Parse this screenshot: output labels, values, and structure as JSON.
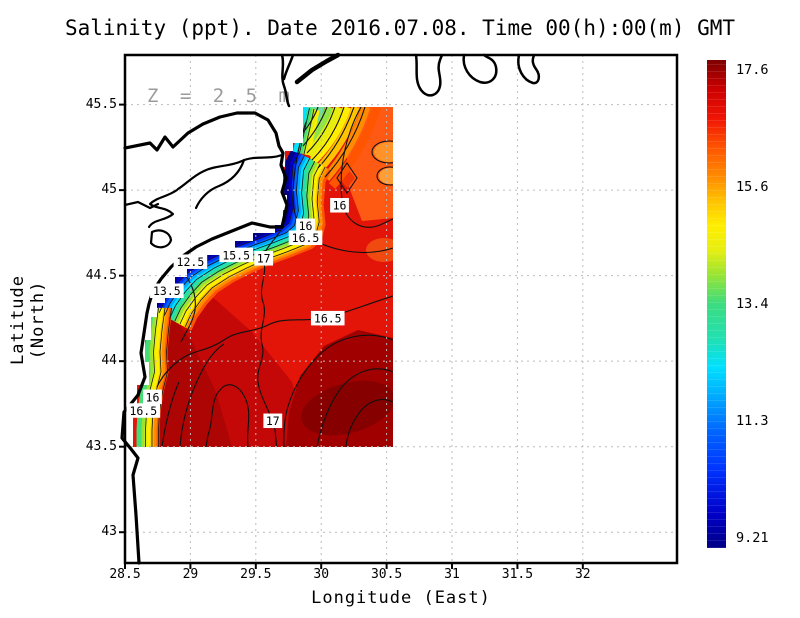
{
  "title": "Salinity (ppt). Date 2016.07.08. Time 00(h):00(m) GMT",
  "chart_data": {
    "type": "heatmap",
    "title": "Salinity (ppt). Date 2016.07.08. Time 00(h):00(m) GMT",
    "variable": "Salinity (ppt)",
    "date": "2016.07.08",
    "time": "00(h):00(m) GMT",
    "annotation": "Z = 2.5 m",
    "xlabel": "Longitude (East)",
    "ylabel": "Latitude (North)",
    "xlim": [
      28.5,
      32.72
    ],
    "ylim": [
      42.82,
      45.79
    ],
    "x_ticks": [
      {
        "v": 28.5,
        "label": "28.5"
      },
      {
        "v": 29,
        "label": "29"
      },
      {
        "v": 29.5,
        "label": "29.5"
      },
      {
        "v": 30,
        "label": "30"
      },
      {
        "v": 30.5,
        "label": "30.5"
      },
      {
        "v": 31,
        "label": "31"
      },
      {
        "v": 31.5,
        "label": "31.5"
      },
      {
        "v": 32,
        "label": "32"
      }
    ],
    "y_ticks": [
      {
        "v": 45.5,
        "label": "45.5"
      },
      {
        "v": 45,
        "label": "45"
      },
      {
        "v": 44.5,
        "label": "44.5"
      },
      {
        "v": 44,
        "label": "44"
      },
      {
        "v": 43.5,
        "label": "43.5"
      },
      {
        "v": 43,
        "label": "43"
      }
    ],
    "grid": "dotted",
    "data_extent": {
      "lon": [
        28.6,
        30.55
      ],
      "lat": [
        43.5,
        45.48
      ]
    },
    "contour_interval": 0.5,
    "contour_labels": [
      {
        "value": "12.5",
        "lon": 29.0,
        "lat": 44.58
      },
      {
        "value": "13.5",
        "lon": 28.82,
        "lat": 44.41
      },
      {
        "value": "15.5",
        "lon": 29.35,
        "lat": 44.62
      },
      {
        "value": "17",
        "lon": 29.56,
        "lat": 44.6
      },
      {
        "value": "16",
        "lon": 29.88,
        "lat": 44.79
      },
      {
        "value": "16.5",
        "lon": 29.88,
        "lat": 44.72
      },
      {
        "value": "16",
        "lon": 30.14,
        "lat": 44.91
      },
      {
        "value": "16.5",
        "lon": 30.05,
        "lat": 44.25
      },
      {
        "value": "16",
        "lon": 28.71,
        "lat": 43.79
      },
      {
        "value": "16.5",
        "lon": 28.64,
        "lat": 43.71
      },
      {
        "value": "17",
        "lon": 29.63,
        "lat": 43.65
      }
    ],
    "colorbar": {
      "position": "right",
      "min": 9.21,
      "max": 17.6,
      "tick_labels": [
        "17.6",
        "15.6",
        "13.4",
        "11.3",
        "9.21"
      ],
      "tick_values": [
        17.6,
        15.6,
        13.4,
        11.3,
        9.21
      ],
      "band_colors": [
        "#000088",
        "#0000cc",
        "#0033ff",
        "#0066ff",
        "#00aaff",
        "#00e0ff",
        "#22e0b0",
        "#44dd77",
        "#99e433",
        "#e6ee11",
        "#ffee00",
        "#ffc300",
        "#ff8c00",
        "#ff5500"
      ],
      "gradient_stops": [
        [
          0,
          "#000085"
        ],
        [
          0.07,
          "#0000c8"
        ],
        [
          0.16,
          "#0033ff"
        ],
        [
          0.24,
          "#0066ff"
        ],
        [
          0.31,
          "#00aaff"
        ],
        [
          0.37,
          "#00e0ff"
        ],
        [
          0.43,
          "#22e0b0"
        ],
        [
          0.5,
          "#3cdc80"
        ],
        [
          0.56,
          "#99e433"
        ],
        [
          0.61,
          "#e6ee11"
        ],
        [
          0.66,
          "#ffee00"
        ],
        [
          0.71,
          "#ffc300"
        ],
        [
          0.76,
          "#ff8c00"
        ],
        [
          0.82,
          "#ff5500"
        ],
        [
          0.88,
          "#f01505"
        ],
        [
          0.94,
          "#cc0000"
        ],
        [
          1,
          "#7d0000"
        ]
      ]
    }
  }
}
